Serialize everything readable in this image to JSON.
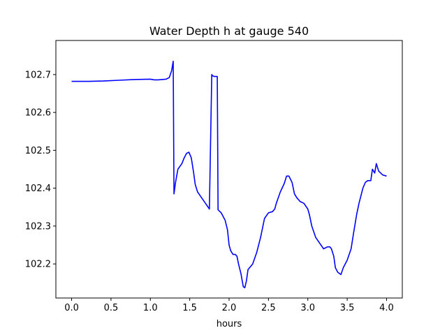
{
  "chart_data": {
    "type": "line",
    "title": "Water Depth h at gauge 540",
    "xlabel": "hours",
    "ylabel": "",
    "xlim": [
      -0.2,
      4.2
    ],
    "ylim": [
      102.11,
      102.79
    ],
    "xticks": [
      0.0,
      0.5,
      1.0,
      1.5,
      2.0,
      2.5,
      3.0,
      3.5,
      4.0
    ],
    "xtick_labels": [
      "0.0",
      "0.5",
      "1.0",
      "1.5",
      "2.0",
      "2.5",
      "3.0",
      "3.5",
      "4.0"
    ],
    "yticks": [
      102.2,
      102.3,
      102.4,
      102.5,
      102.6,
      102.7
    ],
    "ytick_labels": [
      "102.2",
      "102.3",
      "102.4",
      "102.5",
      "102.6",
      "102.7"
    ],
    "grid": false,
    "series": [
      {
        "color": "#0000ff",
        "x": [
          0.0,
          0.2,
          0.4,
          0.6,
          0.8,
          1.0,
          1.05,
          1.1,
          1.2,
          1.24,
          1.27,
          1.29,
          1.3,
          1.3,
          1.32,
          1.35,
          1.4,
          1.43,
          1.46,
          1.49,
          1.52,
          1.55,
          1.57,
          1.6,
          1.65,
          1.7,
          1.75,
          1.78,
          1.79,
          1.79,
          1.81,
          1.85,
          1.86,
          1.86,
          1.9,
          1.95,
          1.98,
          2.0,
          2.02,
          2.05,
          2.08,
          2.1,
          2.12,
          2.15,
          2.18,
          2.2,
          2.22,
          2.24,
          2.26,
          2.3,
          2.35,
          2.4,
          2.45,
          2.5,
          2.55,
          2.58,
          2.6,
          2.65,
          2.7,
          2.73,
          2.76,
          2.8,
          2.83,
          2.86,
          2.9,
          2.95,
          3.0,
          3.02,
          3.05,
          3.1,
          3.15,
          3.2,
          3.25,
          3.28,
          3.3,
          3.33,
          3.35,
          3.38,
          3.42,
          3.45,
          3.5,
          3.55,
          3.58,
          3.62,
          3.65,
          3.7,
          3.73,
          3.76,
          3.8,
          3.82,
          3.85,
          3.87,
          3.9,
          3.95,
          4.0
        ],
        "y": [
          102.682,
          102.682,
          102.683,
          102.685,
          102.687,
          102.688,
          102.686,
          102.686,
          102.688,
          102.692,
          102.71,
          102.735,
          102.385,
          102.385,
          102.415,
          102.45,
          102.465,
          102.48,
          102.492,
          102.495,
          102.48,
          102.44,
          102.41,
          102.39,
          102.375,
          102.36,
          102.345,
          102.7,
          102.697,
          102.697,
          102.695,
          102.695,
          102.345,
          102.343,
          102.335,
          102.315,
          102.29,
          102.25,
          102.235,
          102.225,
          102.225,
          102.22,
          102.2,
          102.175,
          102.14,
          102.137,
          102.155,
          102.185,
          102.19,
          102.2,
          102.23,
          102.27,
          102.32,
          102.335,
          102.338,
          102.345,
          102.36,
          102.39,
          102.412,
          102.432,
          102.432,
          102.415,
          102.385,
          102.375,
          102.365,
          102.36,
          102.345,
          102.33,
          102.3,
          102.27,
          102.255,
          102.24,
          102.245,
          102.245,
          102.24,
          102.22,
          102.19,
          102.178,
          102.172,
          102.19,
          102.21,
          102.24,
          102.28,
          102.33,
          102.36,
          102.4,
          102.415,
          102.42,
          102.42,
          102.45,
          102.44,
          102.465,
          102.445,
          102.435,
          102.432
        ]
      }
    ]
  }
}
